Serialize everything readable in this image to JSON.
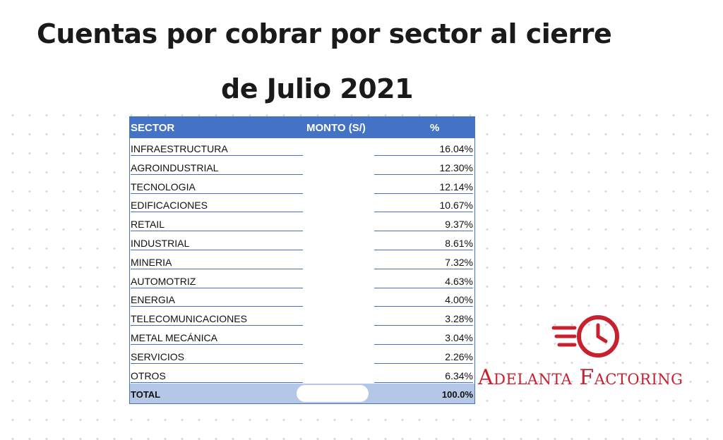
{
  "title": {
    "line1": "Cuentas por cobrar por sector al cierre",
    "line2": "de Julio 2021"
  },
  "table": {
    "headers": {
      "sector": "SECTOR",
      "monto": "MONTO (S/)",
      "pct": "%"
    },
    "rows": [
      {
        "sector": "INFRAESTRUCTURA",
        "pct": "16.04%"
      },
      {
        "sector": "AGROINDUSTRIAL",
        "pct": "12.30%"
      },
      {
        "sector": "TECNOLOGIA",
        "pct": "12.14%"
      },
      {
        "sector": "EDIFICACIONES",
        "pct": "10.67%"
      },
      {
        "sector": "RETAIL",
        "pct": "9.37%"
      },
      {
        "sector": "INDUSTRIAL",
        "pct": "8.61%"
      },
      {
        "sector": "MINERIA",
        "pct": "7.32%"
      },
      {
        "sector": "AUTOMOTRIZ",
        "pct": "4.63%"
      },
      {
        "sector": "ENERGIA",
        "pct": "4.00%"
      },
      {
        "sector": "TELECOMUNICACIONES",
        "pct": "3.28%"
      },
      {
        "sector": "METAL MECÁNICA",
        "pct": "3.04%"
      },
      {
        "sector": "SERVICIOS",
        "pct": "2.26%"
      },
      {
        "sector": "OTROS",
        "pct": "6.34%"
      }
    ],
    "total": {
      "label": "TOTAL",
      "pct": "100.0%"
    }
  },
  "logo": {
    "icon": "clock-speed-icon",
    "text": "Adelanta Factoring",
    "color": "#c8202f"
  },
  "colors": {
    "header": "#4472c4",
    "total_row": "#b4c7e7"
  }
}
